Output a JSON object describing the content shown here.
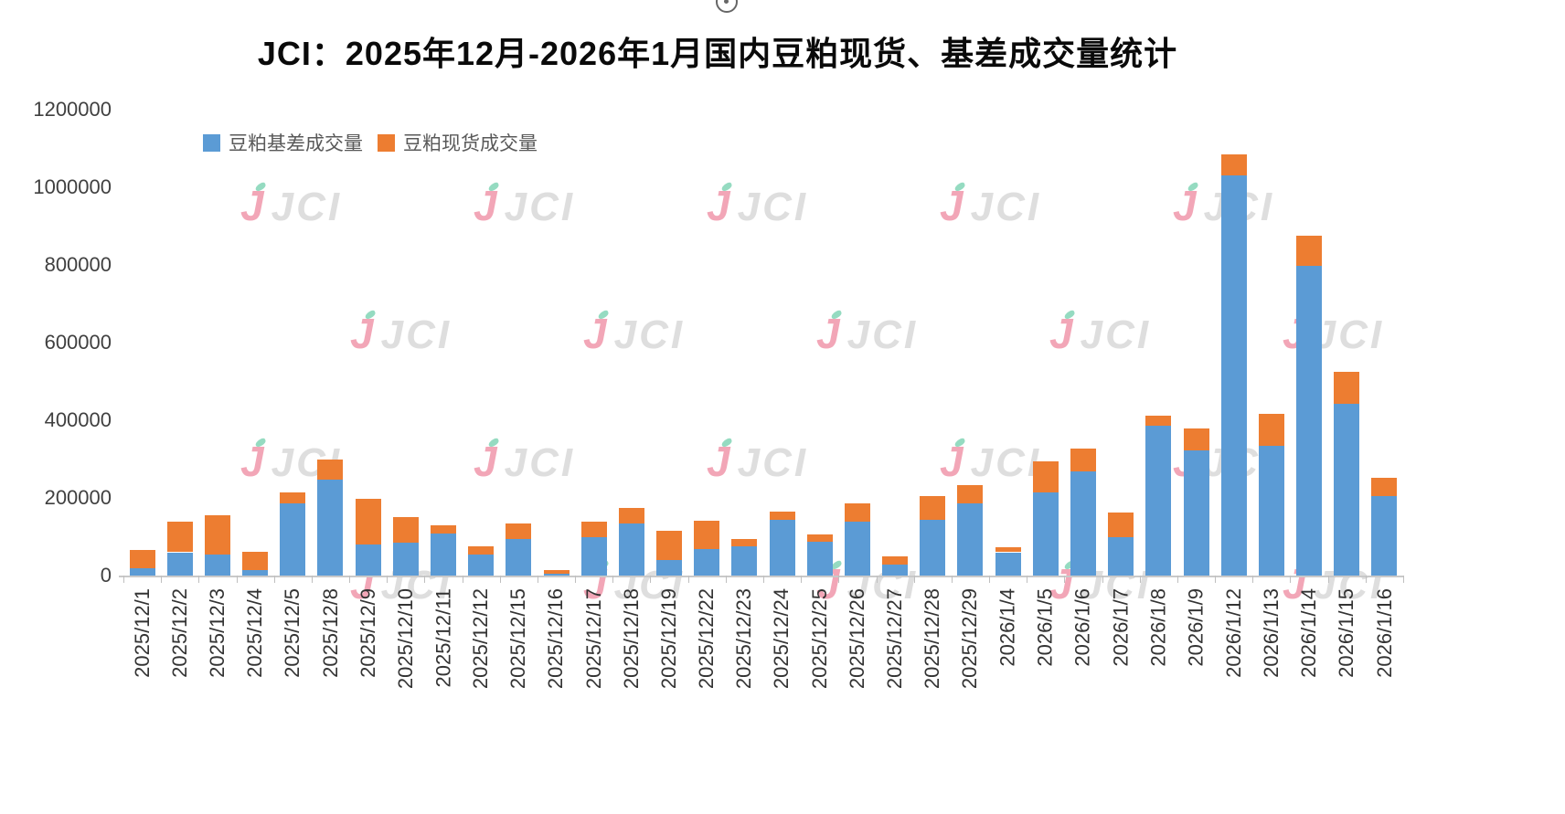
{
  "page": {
    "title": "JCI：2025年12月-2026年1月国内豆粕现货、基差成交量统计"
  },
  "watermark": {
    "logo_letter": "J",
    "brand": "JCI"
  },
  "chart_data": {
    "type": "bar",
    "stacked": true,
    "title": "JCI：2025年12月-2026年1月国内豆粕现货、基差成交量统计",
    "categories": [
      "2025/12/1",
      "2025/12/2",
      "2025/12/3",
      "2025/12/4",
      "2025/12/5",
      "2025/12/8",
      "2025/12/9",
      "2025/12/10",
      "2025/12/11",
      "2025/12/12",
      "2025/12/15",
      "2025/12/16",
      "2025/12/17",
      "2025/12/18",
      "2025/12/19",
      "2025/12/22",
      "2025/12/23",
      "2025/12/24",
      "2025/12/25",
      "2025/12/26",
      "2025/12/27",
      "2025/12/28",
      "2025/12/29",
      "2026/1/4",
      "2026/1/5",
      "2026/1/6",
      "2026/1/7",
      "2026/1/8",
      "2026/1/9",
      "2026/1/12",
      "2026/1/13",
      "2026/1/14",
      "2026/1/15",
      "2026/1/16"
    ],
    "series": [
      {
        "name": "豆粕基差成交量",
        "color": "#5B9BD5",
        "values": [
          20000,
          60000,
          55000,
          15000,
          185000,
          248000,
          80000,
          85000,
          108000,
          55000,
          93000,
          5000,
          98000,
          133000,
          40000,
          68000,
          75000,
          143000,
          88000,
          140000,
          28000,
          143000,
          185000,
          60000,
          215000,
          268000,
          98000,
          385000,
          323000,
          1030000,
          333000,
          798000,
          443000,
          205000
        ]
      },
      {
        "name": "豆粕现货成交量",
        "color": "#ED7D31",
        "values": [
          45000,
          78000,
          100000,
          47000,
          30000,
          52000,
          117000,
          65000,
          22000,
          20000,
          40000,
          8000,
          42000,
          42000,
          75000,
          73000,
          18000,
          22000,
          17000,
          45000,
          22000,
          62000,
          47000,
          12000,
          80000,
          60000,
          65000,
          27000,
          57000,
          55000,
          83000,
          77000,
          82000,
          47000
        ]
      }
    ],
    "xlabel": "",
    "ylabel": "",
    "ylim": [
      0,
      1200000
    ],
    "yticks": [
      0,
      200000,
      400000,
      600000,
      800000,
      1000000,
      1200000
    ],
    "grid": false,
    "legend_position": "top-left"
  }
}
